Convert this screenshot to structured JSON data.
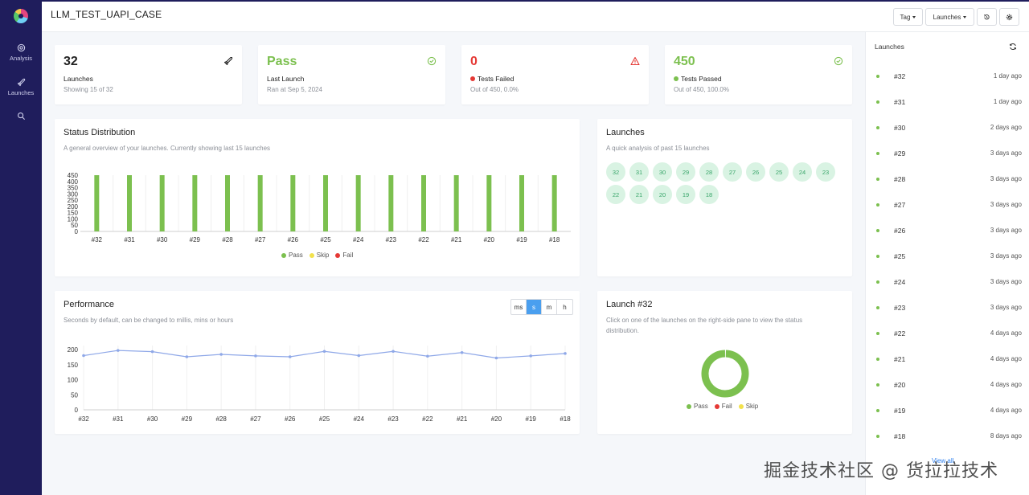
{
  "sidebar": {
    "items": [
      {
        "label": "Analysis",
        "icon": "target-icon"
      },
      {
        "label": "Launches",
        "icon": "rocket-icon"
      },
      {
        "label": "",
        "icon": "search-icon"
      }
    ]
  },
  "header": {
    "project_title": "LLM_TEST_UAPI_CASE",
    "tag_label": "Tag",
    "launches_label": "Launches"
  },
  "stats": [
    {
      "value": "32",
      "label": "Launches",
      "sub": "Showing 15 of 32",
      "value_color": "#222222",
      "icon": "rocket-icon"
    },
    {
      "value": "Pass",
      "label": "Last Launch",
      "sub": "Ran at Sep 5, 2024",
      "value_color": "#7cc04f",
      "icon": "check-circle-icon"
    },
    {
      "value": "0",
      "label": "Tests Failed",
      "sub": "Out of 450, 0.0%",
      "value_color": "#e53935",
      "icon": "warning-icon",
      "dot_color": "#e53935"
    },
    {
      "value": "450",
      "label": "Tests Passed",
      "sub": "Out of 450, 100.0%",
      "value_color": "#7cc04f",
      "icon": "check-circle-icon",
      "dot_color": "#7cc04f"
    }
  ],
  "status_distribution": {
    "title": "Status Distribution",
    "subtitle": "A general overview of your launches. Currently showing last 15 launches",
    "legend": [
      "Pass",
      "Skip",
      "Fail"
    ]
  },
  "launches_card": {
    "title": "Launches",
    "subtitle": "A quick analysis of past 15 launches",
    "bubbles": [
      "32",
      "31",
      "30",
      "29",
      "28",
      "27",
      "26",
      "25",
      "24",
      "23",
      "22",
      "21",
      "20",
      "19",
      "18"
    ]
  },
  "performance": {
    "title": "Performance",
    "subtitle": "Seconds by default, can be changed to millis, mins or hours",
    "units": [
      "ms",
      "s",
      "m",
      "h"
    ],
    "active_unit": "s"
  },
  "launch_detail": {
    "title": "Launch #32",
    "subtitle_line1": "Click on one of the launches on the right-side pane to view the status",
    "subtitle_line2": "distribution.",
    "legend": [
      "Pass",
      "Fail",
      "Skip"
    ]
  },
  "right_panel": {
    "title": "Launches",
    "view_all": "View all",
    "launches": [
      {
        "num": "#32",
        "when": "1 day ago"
      },
      {
        "num": "#31",
        "when": "1 day ago"
      },
      {
        "num": "#30",
        "when": "2 days ago"
      },
      {
        "num": "#29",
        "when": "3 days ago"
      },
      {
        "num": "#28",
        "when": "3 days ago"
      },
      {
        "num": "#27",
        "when": "3 days ago"
      },
      {
        "num": "#26",
        "when": "3 days ago"
      },
      {
        "num": "#25",
        "when": "3 days ago"
      },
      {
        "num": "#24",
        "when": "3 days ago"
      },
      {
        "num": "#23",
        "when": "3 days ago"
      },
      {
        "num": "#22",
        "when": "4 days ago"
      },
      {
        "num": "#21",
        "when": "4 days ago"
      },
      {
        "num": "#20",
        "when": "4 days ago"
      },
      {
        "num": "#19",
        "when": "4 days ago"
      },
      {
        "num": "#18",
        "when": "8 days ago"
      }
    ]
  },
  "colors": {
    "pass": "#7cc04f",
    "skip": "#f2e14c",
    "fail": "#e53935",
    "line": "#8fa8e8"
  },
  "watermark": "掘金技术社区 @ 货拉拉技术",
  "chart_data": [
    {
      "type": "bar",
      "title": "Status Distribution",
      "categories": [
        "#32",
        "#31",
        "#30",
        "#29",
        "#28",
        "#27",
        "#26",
        "#25",
        "#24",
        "#23",
        "#22",
        "#21",
        "#20",
        "#19",
        "#18"
      ],
      "series": [
        {
          "name": "Pass",
          "values": [
            450,
            450,
            450,
            450,
            450,
            450,
            450,
            450,
            450,
            450,
            450,
            450,
            450,
            450,
            450
          ]
        },
        {
          "name": "Skip",
          "values": [
            0,
            0,
            0,
            0,
            0,
            0,
            0,
            0,
            0,
            0,
            0,
            0,
            0,
            0,
            0
          ]
        },
        {
          "name": "Fail",
          "values": [
            0,
            0,
            0,
            0,
            0,
            0,
            0,
            0,
            0,
            0,
            0,
            0,
            0,
            0,
            0
          ]
        }
      ],
      "yticks": [
        0,
        50,
        100,
        150,
        200,
        250,
        300,
        350,
        400,
        450
      ],
      "ylim": [
        0,
        450
      ]
    },
    {
      "type": "line",
      "title": "Performance",
      "categories": [
        "#32",
        "#31",
        "#30",
        "#29",
        "#28",
        "#27",
        "#26",
        "#25",
        "#24",
        "#23",
        "#22",
        "#21",
        "#20",
        "#19",
        "#18"
      ],
      "values": [
        180,
        197,
        193,
        176,
        184,
        179,
        176,
        194,
        180,
        194,
        178,
        190,
        172,
        179,
        187
      ],
      "yticks": [
        0,
        50,
        100,
        150,
        200
      ],
      "ylim": [
        0,
        200
      ]
    },
    {
      "type": "pie",
      "title": "Launch #32",
      "labels": [
        "Pass",
        "Fail",
        "Skip"
      ],
      "values": [
        450,
        0,
        0
      ]
    }
  ]
}
